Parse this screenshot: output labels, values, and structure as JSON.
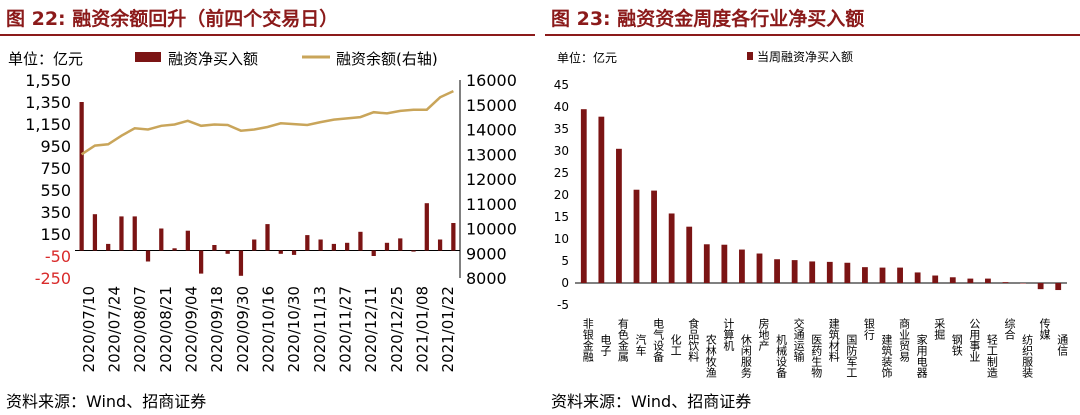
{
  "left": {
    "title": "图 22: 融资余额回升（前四个交易日）",
    "source": "资料来源：Wind、招商证券",
    "unit": "单位：亿元",
    "chart_data": {
      "type": "bar+line",
      "title": "图 22: 融资余额回升（前四个交易日）",
      "unit_label": "单位：亿元",
      "legend": [
        "融资净买入额",
        "融资余额(右轴)"
      ],
      "x_ticks": [
        "2020/07/10",
        "2020/07/24",
        "2020/08/07",
        "2020/08/21",
        "2020/09/04",
        "2020/09/18",
        "2020/09/30",
        "2020/10/16",
        "2020/10/30",
        "2020/11/13",
        "2020/11/27",
        "2020/12/11",
        "2020/12/25",
        "2021/01/08",
        "2021/01/22"
      ],
      "left_axis": {
        "ticks": [
          "1,550",
          "1,350",
          "1,150",
          "950",
          "750",
          "550",
          "350",
          "150",
          "-50",
          "-250"
        ],
        "range": [
          -250,
          1550
        ]
      },
      "right_axis": {
        "ticks": [
          "16000",
          "15000",
          "14000",
          "13000",
          "12000",
          "11000",
          "10000",
          "9000",
          "8000"
        ],
        "range": [
          8000,
          16000
        ]
      },
      "series": [
        {
          "name": "融资净买入额",
          "type": "bar",
          "color": "#7b1414",
          "values": [
            1350,
            330,
            60,
            310,
            310,
            -100,
            200,
            20,
            180,
            -210,
            50,
            -30,
            -230,
            100,
            240,
            -30,
            -40,
            140,
            100,
            60,
            70,
            170,
            -50,
            70,
            110,
            -10,
            430,
            100,
            250
          ]
        },
        {
          "name": "融资余额(右轴)",
          "type": "line",
          "color": "#c9a55a",
          "values": [
            13000,
            13350,
            13400,
            13750,
            14050,
            14000,
            14150,
            14200,
            14350,
            14150,
            14200,
            14180,
            13950,
            14000,
            14100,
            14250,
            14220,
            14180,
            14300,
            14400,
            14450,
            14500,
            14700,
            14650,
            14750,
            14800,
            14800,
            15300,
            15550
          ]
        }
      ]
    }
  },
  "right": {
    "title": "图 23: 融资资金周度各行业净买入额",
    "source": "资料来源：Wind、招商证券",
    "unit": "单位：亿元",
    "chart_data": {
      "type": "bar",
      "title": "图 23: 融资资金周度各行业净买入额",
      "unit_label": "单位：亿元",
      "legend": [
        "当周融资净买入额"
      ],
      "y_ticks": [
        "45",
        "40",
        "35",
        "30",
        "25",
        "20",
        "15",
        "10",
        "5",
        "0",
        "-5"
      ],
      "ylim": [
        -5,
        45
      ],
      "color": "#7b1414",
      "categories": [
        "非银金融",
        "电子",
        "有色金属",
        "汽车",
        "电气设备",
        "化工",
        "食品饮料",
        "农林牧渔",
        "计算机",
        "休闲服务",
        "房地产",
        "机械设备",
        "交通运输",
        "医药生物",
        "建筑材料",
        "国防军工",
        "银行",
        "建筑装饰",
        "商业贸易",
        "家用电器",
        "采掘",
        "钢铁",
        "公用事业",
        "轻工制造",
        "综合",
        "纺织服装",
        "传媒",
        "通信"
      ],
      "values": [
        39.5,
        37.8,
        30.5,
        21.2,
        21.0,
        15.8,
        12.8,
        8.8,
        8.7,
        7.6,
        6.7,
        5.4,
        5.2,
        4.9,
        4.8,
        4.6,
        3.6,
        3.5,
        3.5,
        2.4,
        1.7,
        1.3,
        1.0,
        1.0,
        0.2,
        0,
        -1.4,
        -1.6
      ]
    }
  }
}
